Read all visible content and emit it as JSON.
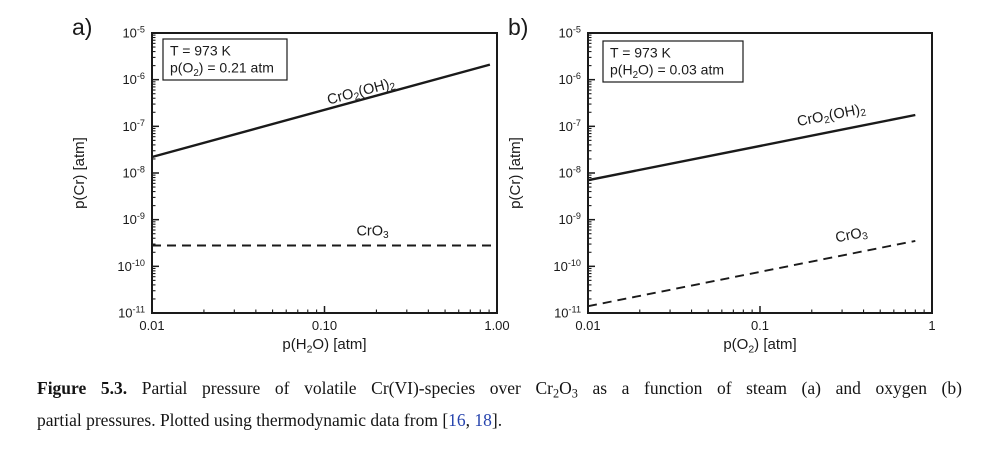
{
  "figure": {
    "caption": {
      "line1": [
        {
          "t": "Figure 5.3.",
          "b": 1
        },
        {
          "t": " Partial pressure of volatile Cr(VI)-species over Cr~2~O~3~ as a function of steam (a) and oxygen (b)"
        }
      ],
      "line2": [
        {
          "t": "partial pressures. Plotted using thermodynamic data from ["
        },
        {
          "t": "16",
          "link": 1
        },
        {
          "t": ", "
        },
        {
          "t": "18",
          "link": 1
        },
        {
          "t": "]."
        }
      ]
    },
    "colors": {
      "line": "#1a1a1a",
      "citation": "#2643ad",
      "background": "#ffffff"
    }
  },
  "chart_data": [
    {
      "type": "line",
      "panel_label": "a)",
      "title_box": [
        "T = 973 K",
        "p(O~2~) = 0.21 atm"
      ],
      "xlabel": "p(H~2~O) [atm]",
      "ylabel": "p(Cr) [atm]",
      "xscale": "log",
      "yscale": "log",
      "xlim": [
        0.01,
        1
      ],
      "ylim": [
        1e-11,
        1e-05
      ],
      "x_ticks": [
        {
          "value": 0.01,
          "label": "0.01"
        },
        {
          "value": 0.1,
          "label": "0.10"
        },
        {
          "value": 1,
          "label": "1.00"
        }
      ],
      "y_tick_exponents": [
        -5,
        -6,
        -7,
        -8,
        -9,
        -10,
        -11
      ],
      "series": [
        {
          "name": "CrO~2~(OH)~2~",
          "line_style": "solid",
          "points": [
            [
              0.01,
              2.2e-08
            ],
            [
              0.91,
              2.1e-06
            ]
          ],
          "label_pos": [
            0.163,
            5.5e-07
          ],
          "label_rotation": -15
        },
        {
          "name": "CrO~3~",
          "line_style": "dashed",
          "points": [
            [
              0.01,
              2.8e-10
            ],
            [
              0.98,
              2.8e-10
            ]
          ],
          "label_pos": [
            0.19,
            5.6e-10
          ],
          "label_rotation": 0
        }
      ]
    },
    {
      "type": "line",
      "panel_label": "b)",
      "title_box": [
        "T = 973 K",
        "p(H~2~O) = 0.03 atm"
      ],
      "xlabel": "p(O~2~) [atm]",
      "ylabel": "p(Cr) [atm]",
      "xscale": "log",
      "yscale": "log",
      "xlim": [
        0.01,
        1
      ],
      "ylim": [
        1e-11,
        1e-05
      ],
      "x_ticks": [
        {
          "value": 0.01,
          "label": "0.01"
        },
        {
          "value": 0.1,
          "label": "0.1"
        },
        {
          "value": 1,
          "label": "1"
        }
      ],
      "y_tick_exponents": [
        -5,
        -6,
        -7,
        -8,
        -9,
        -10,
        -11
      ],
      "series": [
        {
          "name": "CrO~2~(OH)~2~",
          "line_style": "solid",
          "points": [
            [
              0.01,
              7e-09
            ],
            [
              0.8,
              1.75e-07
            ]
          ],
          "label_pos": [
            0.26,
            1.7e-07
          ],
          "label_rotation": -11
        },
        {
          "name": "CrO~3~",
          "line_style": "dashed",
          "points": [
            [
              0.01,
              1.4e-11
            ],
            [
              0.8,
              3.5e-10
            ]
          ],
          "label_pos": [
            0.34,
            4.6e-10
          ],
          "label_rotation": -11
        }
      ]
    }
  ]
}
